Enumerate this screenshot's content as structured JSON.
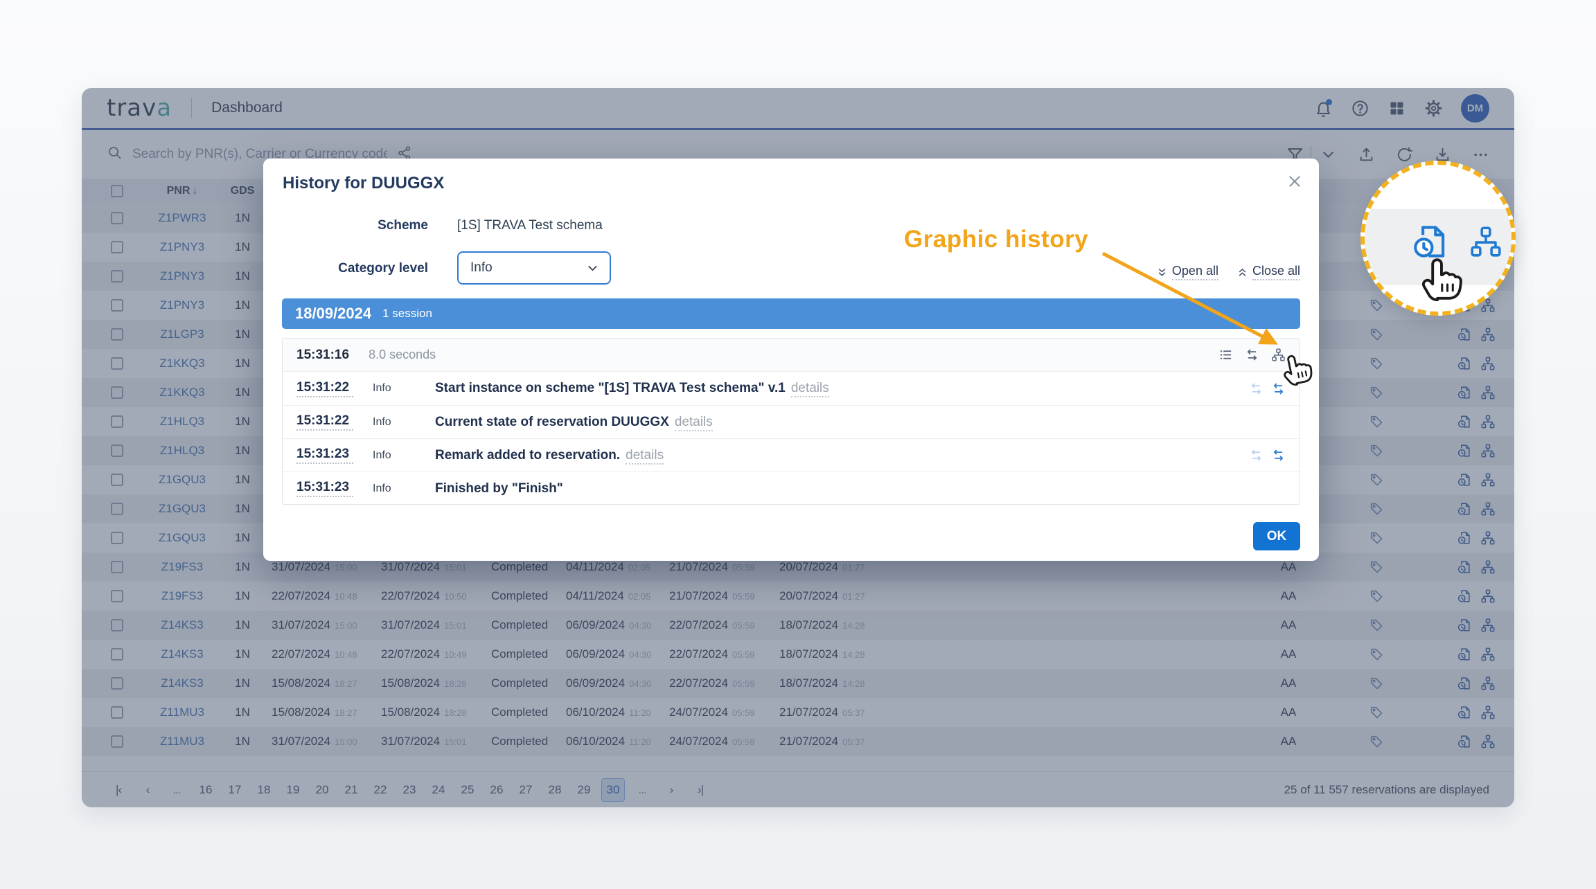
{
  "app": {
    "logo": {
      "part1": "trav",
      "part2": "a"
    },
    "header": {
      "title": "Dashboard",
      "avatar": "DM"
    },
    "toolbar": {
      "search_placeholder": "Search by PNR(s), Carrier or Currency code(s)"
    },
    "table": {
      "headers": {
        "pnr": "PNR",
        "sort": "↓",
        "gds": "GDS"
      },
      "rows": [
        {
          "pnr": "Z1PWR3",
          "gds": "1N"
        },
        {
          "pnr": "Z1PNY3",
          "gds": "1N"
        },
        {
          "pnr": "Z1PNY3",
          "gds": "1N"
        },
        {
          "pnr": "Z1PNY3",
          "gds": "1N"
        },
        {
          "pnr": "Z1LGP3",
          "gds": "1N"
        },
        {
          "pnr": "Z1KKQ3",
          "gds": "1N"
        },
        {
          "pnr": "Z1KKQ3",
          "gds": "1N"
        },
        {
          "pnr": "Z1HLQ3",
          "gds": "1N"
        },
        {
          "pnr": "Z1HLQ3",
          "gds": "1N"
        },
        {
          "pnr": "Z1GQU3",
          "gds": "1N"
        },
        {
          "pnr": "Z1GQU3",
          "gds": "1N"
        },
        {
          "pnr": "Z1GQU3",
          "gds": "1N"
        },
        {
          "pnr": "Z19FS3",
          "gds": "1N",
          "c1": "31/07/2024",
          "t1": "15:00",
          "c2": "31/07/2024",
          "t2": "15:01",
          "status": "Completed",
          "c3": "04/11/2024",
          "t3": "02:05",
          "c4": "21/07/2024",
          "t4": "05:59",
          "c5": "20/07/2024",
          "t5": "01:27",
          "carrier": "AA"
        },
        {
          "pnr": "Z19FS3",
          "gds": "1N",
          "c1": "22/07/2024",
          "t1": "10:48",
          "c2": "22/07/2024",
          "t2": "10:50",
          "status": "Completed",
          "c3": "04/11/2024",
          "t3": "02:05",
          "c4": "21/07/2024",
          "t4": "05:59",
          "c5": "20/07/2024",
          "t5": "01:27",
          "carrier": "AA"
        },
        {
          "pnr": "Z14KS3",
          "gds": "1N",
          "c1": "31/07/2024",
          "t1": "15:00",
          "c2": "31/07/2024",
          "t2": "15:01",
          "status": "Completed",
          "c3": "06/09/2024",
          "t3": "04:30",
          "c4": "22/07/2024",
          "t4": "05:59",
          "c5": "18/07/2024",
          "t5": "14:28",
          "carrier": "AA"
        },
        {
          "pnr": "Z14KS3",
          "gds": "1N",
          "c1": "22/07/2024",
          "t1": "10:48",
          "c2": "22/07/2024",
          "t2": "10:49",
          "status": "Completed",
          "c3": "06/09/2024",
          "t3": "04:30",
          "c4": "22/07/2024",
          "t4": "05:59",
          "c5": "18/07/2024",
          "t5": "14:28",
          "carrier": "AA"
        },
        {
          "pnr": "Z14KS3",
          "gds": "1N",
          "c1": "15/08/2024",
          "t1": "18:27",
          "c2": "15/08/2024",
          "t2": "18:28",
          "status": "Completed",
          "c3": "06/09/2024",
          "t3": "04:30",
          "c4": "22/07/2024",
          "t4": "05:59",
          "c5": "18/07/2024",
          "t5": "14:28",
          "carrier": "AA"
        },
        {
          "pnr": "Z11MU3",
          "gds": "1N",
          "c1": "15/08/2024",
          "t1": "18:27",
          "c2": "15/08/2024",
          "t2": "18:28",
          "status": "Completed",
          "c3": "06/10/2024",
          "t3": "11:20",
          "c4": "24/07/2024",
          "t4": "05:59",
          "c5": "21/07/2024",
          "t5": "05:37",
          "carrier": "AA"
        },
        {
          "pnr": "Z11MU3",
          "gds": "1N",
          "c1": "31/07/2024",
          "t1": "15:00",
          "c2": "31/07/2024",
          "t2": "15:01",
          "status": "Completed",
          "c3": "06/10/2024",
          "t3": "11:20",
          "c4": "24/07/2024",
          "t4": "05:59",
          "c5": "21/07/2024",
          "t5": "05:37",
          "carrier": "AA"
        }
      ]
    },
    "pagination": {
      "items": [
        {
          "t": "nav",
          "name": "first-page",
          "l": "|‹"
        },
        {
          "t": "nav",
          "name": "prev-page",
          "l": "‹"
        },
        {
          "t": "gap",
          "l": "..."
        },
        {
          "t": "page",
          "l": "16"
        },
        {
          "t": "page",
          "l": "17"
        },
        {
          "t": "page",
          "l": "18"
        },
        {
          "t": "page",
          "l": "19"
        },
        {
          "t": "page",
          "l": "20"
        },
        {
          "t": "page",
          "l": "21"
        },
        {
          "t": "page",
          "l": "22"
        },
        {
          "t": "page",
          "l": "23"
        },
        {
          "t": "page",
          "l": "24"
        },
        {
          "t": "page",
          "l": "25"
        },
        {
          "t": "page",
          "l": "26"
        },
        {
          "t": "page",
          "l": "27"
        },
        {
          "t": "page",
          "l": "28"
        },
        {
          "t": "page",
          "l": "29"
        },
        {
          "t": "page",
          "l": "30",
          "current": true
        },
        {
          "t": "gap",
          "l": "..."
        },
        {
          "t": "nav",
          "name": "next-page",
          "l": "›"
        },
        {
          "t": "nav",
          "name": "last-page",
          "l": "›|"
        }
      ],
      "current": "30"
    },
    "footer": {
      "summary": "25 of 11 557 reservations are displayed"
    }
  },
  "modal": {
    "title": "History for DUUGGX",
    "scheme_label": "Scheme",
    "scheme_value": "[1S] TRAVA Test schema",
    "category_label": "Category level",
    "category_value": "Info",
    "open_all": "Open all",
    "close_all": "Close all",
    "session": {
      "date": "18/09/2024",
      "count": "1 session",
      "time": "15:31:16",
      "duration": "8.0 seconds"
    },
    "entries": [
      {
        "time": "15:31:22",
        "level": "Info",
        "message": "Start instance on scheme \"[1S] TRAVA Test schema\" v.1",
        "details": "details",
        "actions": true
      },
      {
        "time": "15:31:22",
        "level": "Info",
        "message": "Current state of reservation DUUGGX",
        "details": "details",
        "actions": false
      },
      {
        "time": "15:31:23",
        "level": "Info",
        "message": "Remark added to reservation.",
        "details": "details",
        "actions": true
      },
      {
        "time": "15:31:23",
        "level": "Info",
        "message": "Finished by \"Finish\"",
        "details": "",
        "actions": false
      }
    ],
    "ok_label": "OK"
  },
  "annotation": {
    "label": "Graphic history"
  },
  "colors": {
    "accent_blue": "#2f7cd3",
    "session_bar": "#4a8fd8",
    "ok_button": "#1273d2",
    "annotation_orange": "#f2a41a",
    "avatar_blue": "#2b5fb8",
    "dim_overlay": "rgba(71,85,112,0.5)"
  }
}
